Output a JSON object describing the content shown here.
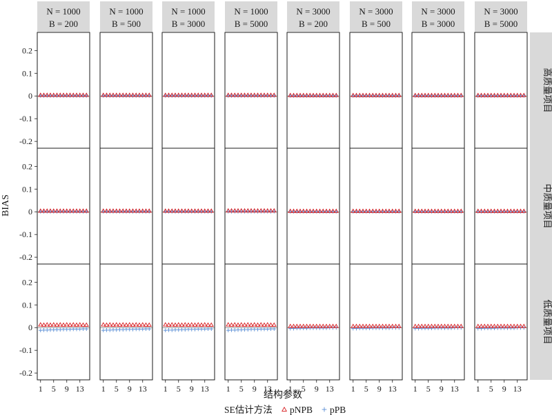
{
  "chart_data": {
    "type": "scatter",
    "ylabel": "BIAS",
    "xlabel": "结构参数",
    "ylim": [
      -0.23,
      0.28
    ],
    "yticks": [
      -0.2,
      -0.1,
      0,
      0.1,
      0.2
    ],
    "ytick_labels": [
      "-0.2",
      "-0.1",
      "0",
      "0.1",
      "0.2"
    ],
    "xlim": [
      0,
      16
    ],
    "xticks": [
      1,
      5,
      9,
      13
    ],
    "columns": [
      {
        "line1": "N = 1000",
        "line2": "B = 200"
      },
      {
        "line1": "N = 1000",
        "line2": "B = 500"
      },
      {
        "line1": "N = 1000",
        "line2": "B = 3000"
      },
      {
        "line1": "N = 1000",
        "line2": "B = 5000"
      },
      {
        "line1": "N = 3000",
        "line2": "B = 200"
      },
      {
        "line1": "N = 3000",
        "line2": "B = 500"
      },
      {
        "line1": "N = 3000",
        "line2": "B = 3000"
      },
      {
        "line1": "N = 3000",
        "line2": "B = 5000"
      }
    ],
    "rows": [
      "高质量项目",
      "中质量项目",
      "低质量项目"
    ],
    "legend": {
      "title": "SE估计方法",
      "position": "bottom",
      "entries": [
        {
          "name": "pNPB",
          "marker": "triangle",
          "color": "#d7191c"
        },
        {
          "name": "pPB",
          "marker": "plus",
          "color": "#5b8fd6"
        }
      ]
    },
    "x": [
      1,
      2,
      3,
      4,
      5,
      6,
      7,
      8,
      9,
      10,
      11,
      12,
      13,
      14,
      15
    ],
    "panels": [
      [
        {
          "pNPB": [
            0.004,
            0.004,
            0.004,
            0.004,
            0.004,
            0.004,
            0.004,
            0.004,
            0.004,
            0.004,
            0.004,
            0.004,
            0.004,
            0.004,
            0.004
          ],
          "pPB": [
            0.001,
            0.001,
            0.001,
            0.001,
            0.001,
            0.001,
            0.001,
            0.001,
            0.001,
            0.001,
            0.001,
            0.001,
            0.001,
            0.001,
            0.001
          ]
        },
        {
          "pNPB": [
            0.004,
            0.004,
            0.004,
            0.004,
            0.004,
            0.004,
            0.004,
            0.004,
            0.004,
            0.004,
            0.004,
            0.004,
            0.004,
            0.004,
            0.004
          ],
          "pPB": [
            0.001,
            0.001,
            0.001,
            0.001,
            0.001,
            0.001,
            0.001,
            0.001,
            0.001,
            0.001,
            0.001,
            0.001,
            0.001,
            0.001,
            0.001
          ]
        },
        {
          "pNPB": [
            0.004,
            0.004,
            0.004,
            0.004,
            0.004,
            0.004,
            0.004,
            0.004,
            0.004,
            0.004,
            0.004,
            0.004,
            0.004,
            0.004,
            0.004
          ],
          "pPB": [
            0.001,
            0.001,
            0.001,
            0.001,
            0.001,
            0.001,
            0.001,
            0.001,
            0.001,
            0.001,
            0.001,
            0.001,
            0.001,
            0.001,
            0.001
          ]
        },
        {
          "pNPB": [
            0.004,
            0.004,
            0.004,
            0.004,
            0.004,
            0.004,
            0.004,
            0.004,
            0.004,
            0.004,
            0.004,
            0.004,
            0.004,
            0.004,
            0.004
          ],
          "pPB": [
            0.001,
            0.001,
            0.001,
            0.001,
            0.001,
            0.001,
            0.001,
            0.001,
            0.001,
            0.001,
            0.001,
            0.001,
            0.001,
            0.001,
            0.001
          ]
        },
        {
          "pNPB": [
            0.003,
            0.003,
            0.003,
            0.003,
            0.003,
            0.003,
            0.003,
            0.003,
            0.003,
            0.003,
            0.003,
            0.003,
            0.003,
            0.003,
            0.003
          ],
          "pPB": [
            0.001,
            0.001,
            0.001,
            0.001,
            0.001,
            0.001,
            0.001,
            0.001,
            0.001,
            0.001,
            0.001,
            0.001,
            0.001,
            0.001,
            0.001
          ]
        },
        {
          "pNPB": [
            0.003,
            0.003,
            0.003,
            0.003,
            0.003,
            0.003,
            0.003,
            0.003,
            0.003,
            0.003,
            0.003,
            0.003,
            0.003,
            0.003,
            0.003
          ],
          "pPB": [
            0.001,
            0.001,
            0.001,
            0.001,
            0.001,
            0.001,
            0.001,
            0.001,
            0.001,
            0.001,
            0.001,
            0.001,
            0.001,
            0.001,
            0.001
          ]
        },
        {
          "pNPB": [
            0.003,
            0.003,
            0.003,
            0.003,
            0.003,
            0.003,
            0.003,
            0.003,
            0.003,
            0.003,
            0.003,
            0.003,
            0.003,
            0.003,
            0.003
          ],
          "pPB": [
            0.001,
            0.001,
            0.001,
            0.001,
            0.001,
            0.001,
            0.001,
            0.001,
            0.001,
            0.001,
            0.001,
            0.001,
            0.001,
            0.001,
            0.001
          ]
        },
        {
          "pNPB": [
            0.003,
            0.003,
            0.003,
            0.003,
            0.003,
            0.003,
            0.003,
            0.003,
            0.003,
            0.003,
            0.003,
            0.003,
            0.003,
            0.003,
            0.003
          ],
          "pPB": [
            0.001,
            0.001,
            0.001,
            0.001,
            0.001,
            0.001,
            0.001,
            0.001,
            0.001,
            0.001,
            0.001,
            0.001,
            0.001,
            0.001,
            0.001
          ]
        }
      ],
      [
        {
          "pNPB": [
            0.004,
            0.004,
            0.004,
            0.004,
            0.004,
            0.004,
            0.004,
            0.004,
            0.004,
            0.004,
            0.004,
            0.004,
            0.004,
            0.004,
            0.004
          ],
          "pPB": [
            0.001,
            0.001,
            0.001,
            0.001,
            0.001,
            0.001,
            0.001,
            0.001,
            0.001,
            0.001,
            0.001,
            0.001,
            0.001,
            0.001,
            0.001
          ]
        },
        {
          "pNPB": [
            0.004,
            0.004,
            0.004,
            0.004,
            0.004,
            0.004,
            0.004,
            0.004,
            0.004,
            0.004,
            0.004,
            0.004,
            0.004,
            0.004,
            0.004
          ],
          "pPB": [
            0.001,
            0.001,
            0.001,
            0.001,
            0.001,
            0.001,
            0.001,
            0.001,
            0.001,
            0.001,
            0.001,
            0.001,
            0.001,
            0.001,
            0.001
          ]
        },
        {
          "pNPB": [
            0.004,
            0.004,
            0.004,
            0.004,
            0.004,
            0.004,
            0.004,
            0.004,
            0.004,
            0.004,
            0.004,
            0.004,
            0.004,
            0.004,
            0.004
          ],
          "pPB": [
            0.001,
            0.001,
            0.001,
            0.001,
            0.001,
            0.001,
            0.001,
            0.001,
            0.001,
            0.001,
            0.001,
            0.001,
            0.001,
            0.001,
            0.001
          ]
        },
        {
          "pNPB": [
            0.005,
            0.005,
            0.005,
            0.005,
            0.005,
            0.005,
            0.005,
            0.005,
            0.005,
            0.005,
            0.005,
            0.005,
            0.005,
            0.005,
            0.005
          ],
          "pPB": [
            0.001,
            0.001,
            0.001,
            0.001,
            0.001,
            0.001,
            0.001,
            0.001,
            0.001,
            0.001,
            0.001,
            0.001,
            0.001,
            0.001,
            0.001
          ]
        },
        {
          "pNPB": [
            0.003,
            0.003,
            0.003,
            0.003,
            0.003,
            0.003,
            0.003,
            0.003,
            0.003,
            0.003,
            0.003,
            0.003,
            0.003,
            0.003,
            0.003
          ],
          "pPB": [
            0.001,
            0.001,
            0.001,
            0.001,
            0.001,
            0.001,
            0.001,
            0.001,
            0.001,
            0.001,
            0.001,
            0.001,
            0.001,
            0.001,
            0.001
          ]
        },
        {
          "pNPB": [
            0.003,
            0.003,
            0.003,
            0.003,
            0.003,
            0.003,
            0.003,
            0.003,
            0.003,
            0.003,
            0.003,
            0.003,
            0.003,
            0.003,
            0.003
          ],
          "pPB": [
            0.001,
            0.001,
            0.001,
            0.001,
            0.001,
            0.001,
            0.001,
            0.001,
            0.001,
            0.001,
            0.001,
            0.001,
            0.001,
            0.001,
            0.001
          ]
        },
        {
          "pNPB": [
            0.003,
            0.003,
            0.003,
            0.003,
            0.003,
            0.003,
            0.003,
            0.003,
            0.003,
            0.003,
            0.003,
            0.003,
            0.003,
            0.003,
            0.003
          ],
          "pPB": [
            0.001,
            0.001,
            0.001,
            0.001,
            0.001,
            0.001,
            0.001,
            0.001,
            0.001,
            0.001,
            0.001,
            0.001,
            0.001,
            0.001,
            0.001
          ]
        },
        {
          "pNPB": [
            0.003,
            0.003,
            0.003,
            0.003,
            0.003,
            0.003,
            0.003,
            0.003,
            0.003,
            0.003,
            0.003,
            0.003,
            0.003,
            0.003,
            0.003
          ],
          "pPB": [
            0.001,
            0.001,
            0.001,
            0.001,
            0.001,
            0.001,
            0.001,
            0.001,
            0.001,
            0.001,
            0.001,
            0.001,
            0.001,
            0.001,
            0.001
          ]
        }
      ],
      [
        {
          "pNPB": [
            0.013,
            0.012,
            0.013,
            0.012,
            0.013,
            0.012,
            0.013,
            0.012,
            0.013,
            0.012,
            0.013,
            0.012,
            0.013,
            0.012,
            0.012
          ],
          "pPB": [
            -0.012,
            -0.011,
            -0.011,
            -0.01,
            -0.01,
            -0.009,
            -0.009,
            -0.008,
            -0.008,
            -0.008,
            -0.007,
            -0.007,
            -0.007,
            -0.006,
            -0.006
          ]
        },
        {
          "pNPB": [
            0.013,
            0.012,
            0.013,
            0.012,
            0.013,
            0.012,
            0.013,
            0.012,
            0.013,
            0.012,
            0.013,
            0.012,
            0.013,
            0.012,
            0.012
          ],
          "pPB": [
            -0.012,
            -0.011,
            -0.011,
            -0.01,
            -0.01,
            -0.009,
            -0.009,
            -0.008,
            -0.008,
            -0.008,
            -0.007,
            -0.007,
            -0.007,
            -0.006,
            -0.006
          ]
        },
        {
          "pNPB": [
            0.013,
            0.012,
            0.013,
            0.012,
            0.013,
            0.012,
            0.013,
            0.012,
            0.013,
            0.012,
            0.013,
            0.012,
            0.013,
            0.012,
            0.012
          ],
          "pPB": [
            -0.012,
            -0.011,
            -0.011,
            -0.01,
            -0.01,
            -0.009,
            -0.009,
            -0.008,
            -0.008,
            -0.008,
            -0.007,
            -0.007,
            -0.007,
            -0.006,
            -0.006
          ]
        },
        {
          "pNPB": [
            0.013,
            0.012,
            0.013,
            0.012,
            0.013,
            0.012,
            0.013,
            0.012,
            0.013,
            0.012,
            0.013,
            0.012,
            0.013,
            0.012,
            0.012
          ],
          "pPB": [
            -0.012,
            -0.011,
            -0.011,
            -0.01,
            -0.01,
            -0.009,
            -0.009,
            -0.008,
            -0.008,
            -0.008,
            -0.007,
            -0.007,
            -0.007,
            -0.006,
            -0.006
          ]
        },
        {
          "pNPB": [
            0.006,
            0.006,
            0.006,
            0.006,
            0.006,
            0.006,
            0.006,
            0.006,
            0.006,
            0.006,
            0.006,
            0.006,
            0.006,
            0.006,
            0.006
          ],
          "pPB": [
            -0.004,
            -0.004,
            -0.003,
            -0.003,
            -0.003,
            -0.003,
            -0.002,
            -0.002,
            -0.002,
            -0.002,
            -0.002,
            -0.002,
            -0.001,
            -0.001,
            -0.001
          ]
        },
        {
          "pNPB": [
            0.006,
            0.006,
            0.006,
            0.006,
            0.006,
            0.006,
            0.006,
            0.006,
            0.006,
            0.006,
            0.006,
            0.006,
            0.006,
            0.006,
            0.006
          ],
          "pPB": [
            -0.004,
            -0.004,
            -0.003,
            -0.003,
            -0.003,
            -0.003,
            -0.002,
            -0.002,
            -0.002,
            -0.002,
            -0.002,
            -0.002,
            -0.001,
            -0.001,
            -0.001
          ]
        },
        {
          "pNPB": [
            0.006,
            0.006,
            0.006,
            0.006,
            0.006,
            0.006,
            0.006,
            0.006,
            0.006,
            0.006,
            0.006,
            0.006,
            0.006,
            0.006,
            0.006
          ],
          "pPB": [
            -0.004,
            -0.004,
            -0.003,
            -0.003,
            -0.003,
            -0.003,
            -0.002,
            -0.002,
            -0.002,
            -0.002,
            -0.002,
            -0.002,
            -0.001,
            -0.001,
            -0.001
          ]
        },
        {
          "pNPB": [
            0.006,
            0.006,
            0.006,
            0.006,
            0.006,
            0.006,
            0.006,
            0.006,
            0.006,
            0.006,
            0.006,
            0.006,
            0.006,
            0.006,
            0.006
          ],
          "pPB": [
            -0.004,
            -0.004,
            -0.003,
            -0.003,
            -0.003,
            -0.003,
            -0.002,
            -0.002,
            -0.002,
            -0.002,
            -0.002,
            -0.002,
            -0.001,
            -0.001,
            -0.001
          ]
        }
      ]
    ]
  }
}
